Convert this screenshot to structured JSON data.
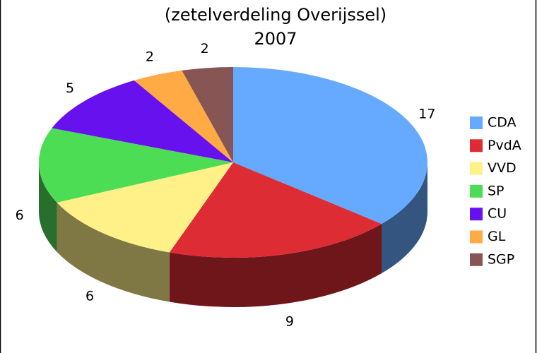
{
  "chart_data": {
    "type": "pie3d",
    "title": "(zetelverdeling Overijssel)",
    "subtitle": "2007",
    "categories": [
      "CDA",
      "PvdA",
      "VVD",
      "SP",
      "CU",
      "GL",
      "SGP"
    ],
    "values": [
      17,
      9,
      6,
      6,
      5,
      2,
      2
    ],
    "colors": [
      "#66aaff",
      "#dd2c33",
      "#fff088",
      "#4ddd55",
      "#6611ee",
      "#ffaa44",
      "#885555"
    ],
    "legend": "right"
  }
}
